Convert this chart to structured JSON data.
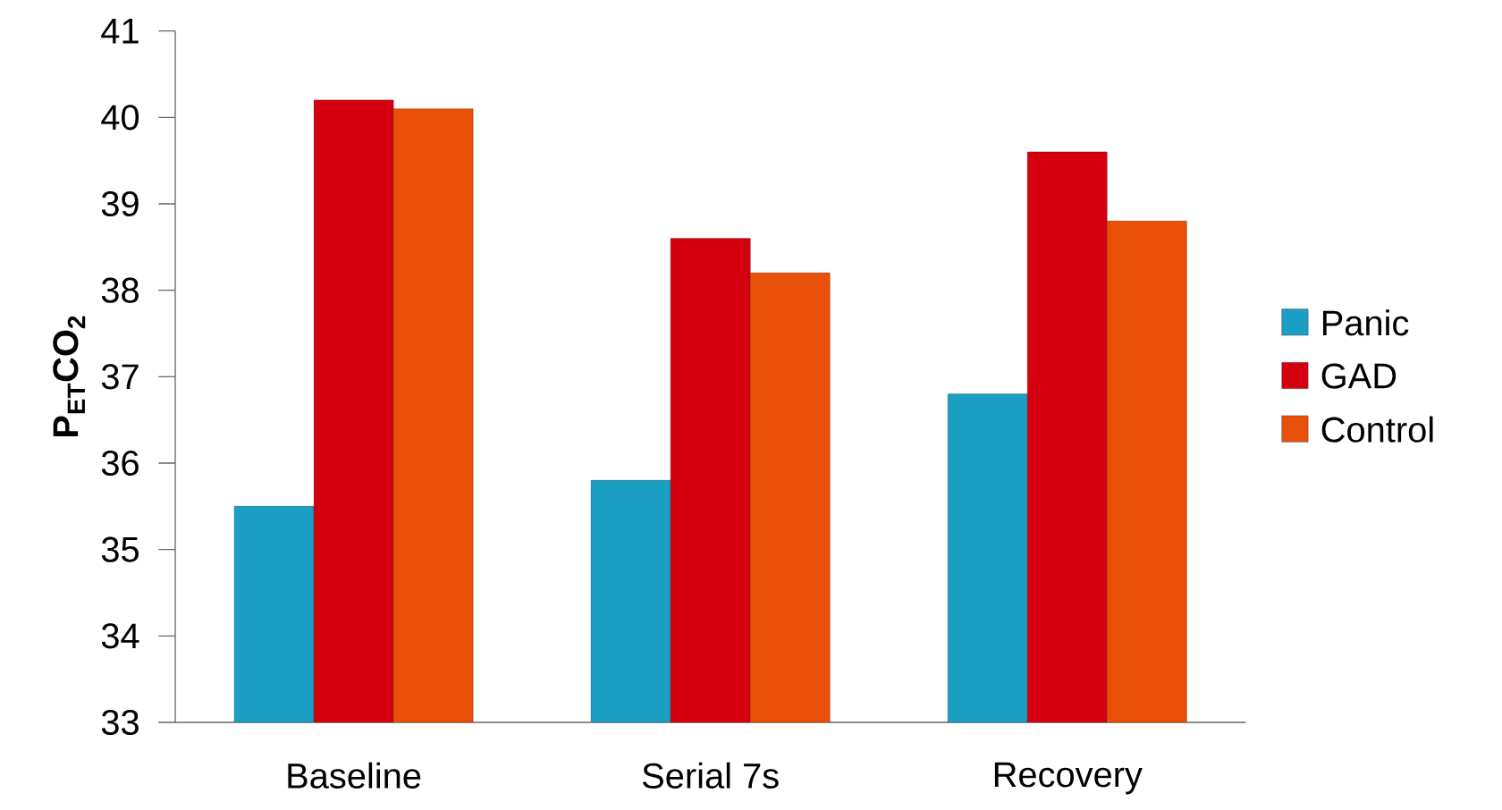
{
  "chart_data": {
    "type": "bar",
    "ylabel": "P$_{ET}$CO$_{2}$",
    "categories": [
      "Baseline",
      "Serial 7s",
      "Recovery"
    ],
    "series": [
      {
        "name": "Panic",
        "color": "#1a9ec4",
        "values": [
          35.5,
          35.8,
          36.8
        ]
      },
      {
        "name": "GAD",
        "color": "#d4000f",
        "values": [
          40.2,
          38.6,
          39.6
        ]
      },
      {
        "name": "Control",
        "color": "#e8500a",
        "values": [
          40.1,
          38.2,
          38.8
        ]
      }
    ],
    "ylim": [
      33,
      41
    ],
    "yticks": [
      33,
      34,
      35,
      36,
      37,
      38,
      39,
      40,
      41
    ],
    "legend": "right"
  }
}
